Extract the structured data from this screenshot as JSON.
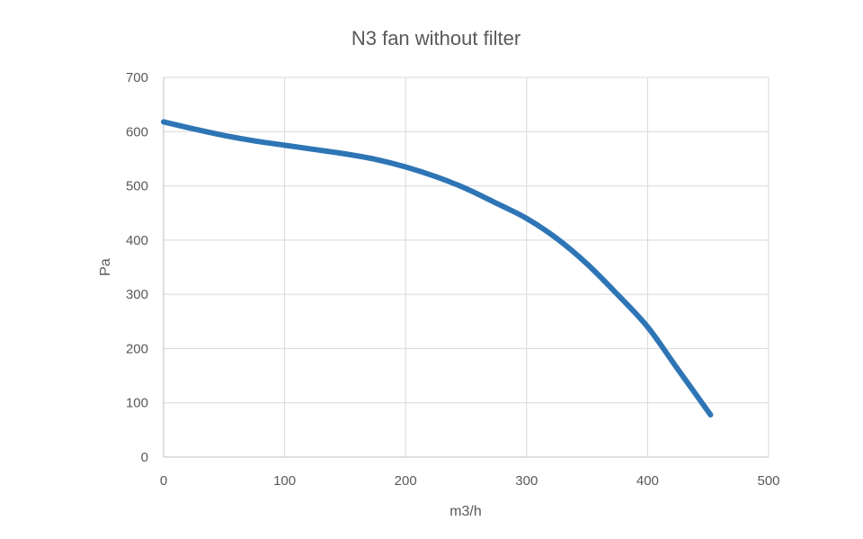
{
  "chart_data": {
    "type": "line",
    "title": "N3 fan without filter",
    "xlabel": "m3/h",
    "ylabel": "Pa",
    "xlim": [
      0,
      500
    ],
    "ylim": [
      0,
      700
    ],
    "xticks": [
      0,
      100,
      200,
      300,
      400,
      500
    ],
    "yticks": [
      0,
      100,
      200,
      300,
      400,
      500,
      600,
      700
    ],
    "grid": true,
    "legend": "none",
    "series": [
      {
        "color": "#2e75b6",
        "x": [
          0,
          25,
          50,
          75,
          100,
          125,
          150,
          175,
          200,
          225,
          250,
          275,
          300,
          325,
          350,
          375,
          400,
          425,
          452
        ],
        "y": [
          618,
          605,
          593,
          583,
          575,
          567,
          559,
          549,
          535,
          517,
          495,
          468,
          440,
          403,
          356,
          300,
          240,
          162,
          78
        ]
      }
    ]
  }
}
